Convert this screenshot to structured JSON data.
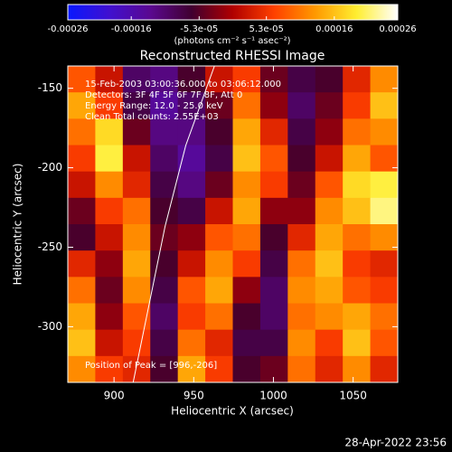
{
  "chart_data": {
    "type": "heatmap",
    "title": "Reconstructed RHESSI Image",
    "colorbar_label": "(photons cm⁻² s⁻¹ asec⁻²)",
    "clim": [
      -0.00026,
      0.00026
    ],
    "colorbar_ticks": [
      -0.00026,
      -0.00016,
      {
        "value": -5.3e-05,
        "label": "-5.3e-05"
      },
      {
        "value": 5.3e-05,
        "label": "5.3e-05"
      },
      0.00016,
      0.00026
    ],
    "colormap": [
      "#0818ff",
      "#4010d0",
      "#5a0890",
      "#400030",
      "#b00000",
      "#ff4000",
      "#ff9900",
      "#ffee30",
      "#ffffff"
    ],
    "xlabel": "Heliocentric X (arcsec)",
    "ylabel": "Heliocentric Y (arcsec)",
    "xlim": [
      871,
      1078
    ],
    "ylim": [
      -335,
      -136
    ],
    "xticks": [
      900,
      950,
      1000,
      1050
    ],
    "yticks": [
      -150,
      -200,
      -250,
      -300
    ],
    "z": [
      [
        8e-05,
        2e-05,
        -0.0001,
        -0.00012,
        -6e-05,
        2e-05,
        6e-05,
        -4e-05,
        -8e-05,
        -6e-05,
        4e-05,
        0.00012
      ],
      [
        0.00014,
        6e-05,
        -8e-05,
        -0.00014,
        -0.0001,
        -4e-05,
        0.0001,
        -2e-05,
        -0.0001,
        -4e-05,
        6e-05,
        0.00016
      ],
      [
        0.0001,
        0.00018,
        -4e-05,
        -0.00012,
        -0.00012,
        -6e-05,
        0.00014,
        4e-05,
        -8e-05,
        -2e-05,
        0.0001,
        0.00012
      ],
      [
        6e-05,
        0.0002,
        2e-05,
        -0.0001,
        -0.00014,
        -8e-05,
        0.00016,
        8e-05,
        -6e-05,
        2e-05,
        0.00014,
        8e-05
      ],
      [
        2e-05,
        0.00012,
        4e-05,
        -8e-05,
        -0.00012,
        -4e-05,
        0.00012,
        6e-05,
        -4e-05,
        8e-05,
        0.00018,
        0.0002
      ],
      [
        -4e-05,
        6e-05,
        0.0001,
        -6e-05,
        -8e-05,
        2e-05,
        0.00014,
        -2e-05,
        -2e-05,
        0.00012,
        0.00016,
        0.00022
      ],
      [
        -6e-05,
        2e-05,
        0.00012,
        -4e-05,
        -2e-05,
        8e-05,
        0.0001,
        -6e-05,
        4e-05,
        0.00014,
        0.0001,
        0.00012
      ],
      [
        4e-05,
        -2e-05,
        0.00014,
        -6e-05,
        2e-05,
        0.00012,
        6e-05,
        -8e-05,
        0.0001,
        0.00016,
        6e-05,
        4e-05
      ],
      [
        0.0001,
        -4e-05,
        0.00012,
        -8e-05,
        8e-05,
        0.00014,
        -2e-05,
        -0.0001,
        0.00012,
        0.00014,
        8e-05,
        6e-05
      ],
      [
        0.00014,
        -2e-05,
        8e-05,
        -0.0001,
        6e-05,
        0.0001,
        -6e-05,
        -0.0001,
        0.0001,
        0.00012,
        0.00014,
        0.0001
      ],
      [
        0.00016,
        2e-05,
        6e-05,
        -8e-05,
        0.0001,
        4e-05,
        -8e-05,
        -8e-05,
        0.00012,
        6e-05,
        0.00016,
        8e-05
      ],
      [
        0.00012,
        6e-05,
        4e-05,
        -6e-05,
        0.00014,
        6e-05,
        -6e-05,
        -4e-05,
        0.0001,
        4e-05,
        0.00012,
        4e-05
      ]
    ],
    "limb": {
      "color": "#ffffff",
      "x": [
        912,
        932,
        945,
        963
      ],
      "y": [
        -335,
        -237,
        -186,
        -136
      ]
    },
    "annotations": [
      "15-Feb-2003 03:00:36.000 to 03:06:12.000",
      "Detectors: 3F 4F 5F 6F 7F 8F, Att 0",
      "Energy Range: 12.0 - 25.0 keV",
      "Clean    Total counts: 2.55E+03"
    ],
    "peak_label": "Position of Peak = [996,-206]",
    "footer": "28-Apr-2022 23:56"
  }
}
